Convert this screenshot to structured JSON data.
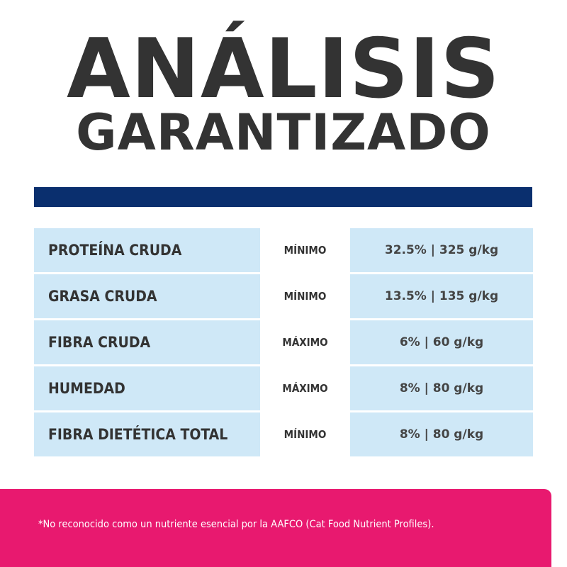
{
  "header": {
    "title_line1": "ANÁLISIS",
    "title_line2": "GARANTIZADO"
  },
  "colors": {
    "title_text": "#333333",
    "divider": "#0a2f6e",
    "cell_background": "#cfe8f7",
    "footer_background": "#e8196f"
  },
  "table": {
    "rows": [
      {
        "nutrient": "PROTEÍNA CRUDA",
        "qualifier": "MÍNIMO",
        "value": "32.5% | 325 g/kg"
      },
      {
        "nutrient": "GRASA CRUDA",
        "qualifier": "MÍNIMO",
        "value": "13.5% | 135 g/kg"
      },
      {
        "nutrient": "FIBRA CRUDA",
        "qualifier": "MÁXIMO",
        "value": "6% | 60 g/kg"
      },
      {
        "nutrient": "HUMEDAD",
        "qualifier": "MÁXIMO",
        "value": "8% | 80 g/kg"
      },
      {
        "nutrient": "FIBRA DIETÉTICA TOTAL",
        "qualifier": "MÍNIMO",
        "value": "8% | 80 g/kg"
      }
    ]
  },
  "footer": {
    "note": "*No reconocido como un nutriente esencial por la AAFCO (Cat Food Nutrient Profiles)."
  }
}
